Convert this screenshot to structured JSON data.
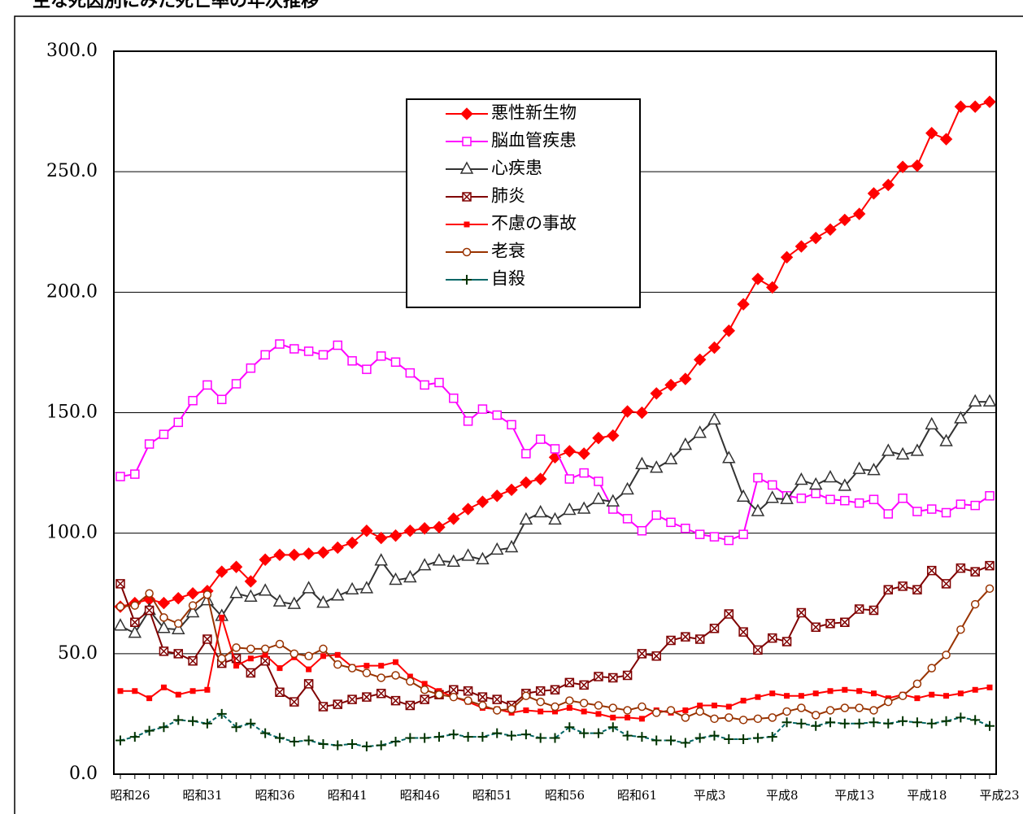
{
  "chart_data": {
    "type": "line",
    "title": "主な死因別にみた死亡率の年次推移",
    "categories": [
      "昭和26",
      null,
      null,
      null,
      null,
      "昭和31",
      null,
      null,
      null,
      null,
      "昭和36",
      null,
      null,
      null,
      null,
      "昭和41",
      null,
      null,
      null,
      null,
      "昭和46",
      null,
      null,
      null,
      null,
      "昭和51",
      null,
      null,
      null,
      null,
      "昭和56",
      null,
      null,
      null,
      null,
      "昭和61",
      null,
      null,
      null,
      null,
      "平成3",
      null,
      null,
      null,
      null,
      "平成8",
      null,
      null,
      null,
      null,
      "平成13",
      null,
      null,
      null,
      null,
      "平成18",
      null,
      null,
      null,
      null,
      "平成23"
    ],
    "ylim": [
      0,
      300
    ],
    "yticks": [
      {
        "value": 0,
        "label": "0.0"
      },
      {
        "value": 50,
        "label": "50.0"
      },
      {
        "value": 100,
        "label": "100.0"
      },
      {
        "value": 150,
        "label": "150.0"
      },
      {
        "value": 200,
        "label": "200.0"
      },
      {
        "value": 250,
        "label": "250.0"
      },
      {
        "value": 300,
        "label": "300.0"
      }
    ],
    "grid": true,
    "legend": "top-center",
    "series": [
      {
        "name": "悪性新生物",
        "color": "#ff0000",
        "marker": "diamond",
        "values": [
          69.5,
          71,
          72.5,
          71,
          73,
          75,
          76,
          84,
          86,
          80,
          89,
          91,
          91,
          91.5,
          92,
          94,
          96,
          101,
          98,
          99,
          101,
          102,
          102.5,
          106,
          110,
          113,
          115.5,
          118,
          121,
          122.5,
          131.5,
          134,
          133,
          139.5,
          140.5,
          150.5,
          150,
          158,
          161.5,
          164,
          172,
          177,
          184,
          195,
          205.5,
          202,
          214.5,
          219,
          222.5,
          226,
          230,
          232.5,
          241,
          244.5,
          252,
          252.5,
          266,
          263.5,
          277,
          277,
          279
        ]
      },
      {
        "name": "脳血管疾患",
        "color": "#ff00ff",
        "marker": "square-open",
        "values": [
          123.5,
          124.5,
          137,
          141,
          146,
          155,
          161.5,
          155.5,
          162,
          168.5,
          174,
          178.5,
          176.5,
          175.5,
          174,
          178,
          171.5,
          168,
          173.5,
          171,
          166.5,
          161.5,
          162.5,
          156,
          146.5,
          151.5,
          149,
          145,
          133,
          139,
          135,
          122.5,
          125,
          121.5,
          110,
          106,
          101,
          107.5,
          104.5,
          102,
          99.5,
          98.5,
          97,
          99.5,
          123,
          120,
          115.5,
          114.5,
          116.5,
          114,
          113.5,
          112.5,
          114,
          108,
          114.5,
          109,
          110,
          108.5,
          112,
          111.5,
          115.5
        ]
      },
      {
        "name": "心疾患",
        "color": "#333333",
        "marker": "triangle-open",
        "values": [
          61.5,
          58.5,
          68,
          60.5,
          60,
          67,
          72,
          65.5,
          75,
          73.5,
          76,
          71.5,
          70.5,
          77,
          71,
          74,
          76.5,
          77,
          88.5,
          80.5,
          81.5,
          86.5,
          88.5,
          88,
          90.5,
          89,
          93,
          94,
          105.5,
          108.5,
          105.5,
          109.5,
          110,
          114,
          113,
          118,
          128.5,
          127,
          130.5,
          136.5,
          141.5,
          147,
          131,
          115,
          109,
          114.5,
          114,
          122,
          120,
          123,
          119.5,
          126.5,
          126,
          134,
          132.5,
          134,
          145,
          138,
          147.5,
          154.5,
          154.5
        ]
      },
      {
        "name": "肺炎",
        "color": "#800000",
        "marker": "x-box",
        "values": [
          79,
          63,
          68,
          51,
          50,
          47,
          56,
          46,
          48,
          42,
          47,
          34,
          30,
          37.5,
          28,
          29,
          31,
          32,
          33.5,
          30.5,
          28.5,
          31,
          33,
          35,
          34.5,
          32,
          31,
          28.5,
          33.5,
          34.5,
          35,
          38,
          37,
          40.5,
          40,
          41,
          50,
          49,
          55.5,
          57,
          56,
          60.5,
          66.5,
          59,
          51.5,
          56.5,
          55,
          67,
          61,
          62.5,
          63,
          68.5,
          68,
          76.5,
          78,
          76.5,
          84.5,
          79,
          85.5,
          84,
          86.5
        ]
      },
      {
        "name": "不慮の事故",
        "color": "#ff0000",
        "marker": "square-filled",
        "values": [
          34.5,
          34.5,
          31.5,
          36,
          33,
          34.5,
          35,
          65,
          45,
          48,
          49.5,
          44,
          48.5,
          43.5,
          49,
          49.5,
          44.5,
          45,
          45,
          46.5,
          40.5,
          37.5,
          34.5,
          32,
          30,
          27.5,
          27,
          25.5,
          26.5,
          26,
          26,
          27.5,
          26,
          25,
          23.5,
          23.5,
          23,
          26.5,
          25.5,
          26.5,
          28.5,
          28.5,
          28,
          30.5,
          32,
          33.5,
          32.5,
          32.5,
          33.5,
          34.5,
          35,
          34.5,
          33.5,
          31.5,
          33,
          31.5,
          33,
          32.5,
          33.5,
          35,
          36
        ]
      },
      {
        "name": "老衰",
        "color": "#993300",
        "marker": "circle-open",
        "values": [
          69.5,
          70,
          75,
          65,
          62.5,
          70,
          74.5,
          48,
          52.5,
          52,
          52,
          54,
          50,
          49,
          52,
          45.5,
          44,
          42,
          40,
          41,
          38.5,
          35,
          33,
          32,
          30.5,
          28.5,
          26.5,
          27,
          32.5,
          30,
          28,
          30.5,
          29.5,
          28.5,
          27.5,
          26.5,
          28,
          25.5,
          26.5,
          23.5,
          26,
          23,
          23.5,
          22.5,
          23,
          23.5,
          26,
          27.5,
          24.5,
          26.5,
          27.5,
          27.5,
          26.5,
          30,
          32.5,
          37.5,
          44,
          49.5,
          60,
          70.5,
          77
        ]
      },
      {
        "name": "自殺",
        "color": "#006666",
        "marker": "plus",
        "values": [
          14,
          15.5,
          18,
          19.5,
          22.5,
          22,
          21,
          25,
          19.5,
          21,
          17,
          15,
          13.5,
          14,
          12.5,
          12,
          12.5,
          11.5,
          12,
          13.5,
          15,
          15,
          15.5,
          16.5,
          15.5,
          15.5,
          17,
          16,
          16.5,
          15,
          15,
          19.5,
          17,
          17,
          19.5,
          16,
          15.5,
          14,
          14,
          13,
          15,
          16,
          14.5,
          14.5,
          15,
          15.5,
          21.5,
          21,
          20,
          21.5,
          21,
          21,
          21.5,
          21,
          22,
          21.5,
          21,
          22,
          23.5,
          22.5,
          20
        ]
      }
    ]
  }
}
